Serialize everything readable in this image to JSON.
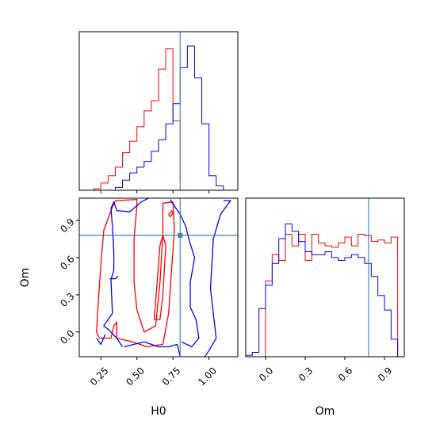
{
  "chart_data": {
    "type": "corner",
    "parameters": [
      "H0",
      "Om"
    ],
    "axis_labels": {
      "x_left": "H0",
      "x_right": "Om",
      "y_left": "Om"
    },
    "truth": {
      "H0": 0.8,
      "Om": 0.78
    },
    "colors": {
      "red": "#ff0000",
      "blue": "#0000ff",
      "truth": "#4682b4"
    },
    "H0": {
      "xlim": [
        0.1,
        1.2
      ],
      "ticks": [
        0.25,
        0.5,
        0.75,
        1.0
      ],
      "tick_labels": [
        "0.25",
        "0.50",
        "0.75",
        "1.00"
      ],
      "hist_red_edges": [
        0.2,
        0.25,
        0.3,
        0.35,
        0.4,
        0.45,
        0.5,
        0.55,
        0.6,
        0.65,
        0.7,
        0.75,
        0.8
      ],
      "hist_red_values": [
        0.01,
        0.05,
        0.1,
        0.16,
        0.26,
        0.34,
        0.44,
        0.55,
        0.62,
        0.84,
        0.98,
        0.48,
        0.06
      ],
      "hist_blue_edges": [
        0.35,
        0.4,
        0.45,
        0.5,
        0.55,
        0.6,
        0.65,
        0.7,
        0.75,
        0.8,
        0.85,
        0.9,
        0.95,
        1.0,
        1.05,
        1.1
      ],
      "hist_blue_values": [
        0.02,
        0.07,
        0.12,
        0.16,
        0.2,
        0.27,
        0.35,
        0.46,
        0.6,
        0.85,
        1.0,
        0.78,
        0.46,
        0.1,
        0.03
      ]
    },
    "Om": {
      "xlim": [
        -0.15,
        1.05
      ],
      "ylim": [
        -0.2,
        1.08
      ],
      "ticks": [
        0.0,
        0.3,
        0.6,
        0.9
      ],
      "tick_labels": [
        "0.0",
        "0.3",
        "0.6",
        "0.9"
      ],
      "hist_edges": [
        -0.15,
        -0.1,
        -0.05,
        0.0,
        0.05,
        0.1,
        0.15,
        0.2,
        0.25,
        0.3,
        0.35,
        0.4,
        0.45,
        0.5,
        0.55,
        0.6,
        0.65,
        0.7,
        0.75,
        0.8,
        0.85,
        0.9,
        0.95,
        1.0,
        1.05
      ],
      "hist_red_values": [
        0,
        0,
        0,
        0.52,
        0.7,
        0.66,
        0.84,
        0.76,
        0.84,
        0.66,
        0.84,
        0.78,
        0.76,
        0.75,
        0.78,
        0.82,
        0.76,
        0.84,
        0.83,
        0.79,
        0.8,
        0.78,
        0.82,
        0
      ],
      "hist_blue_values": [
        0.01,
        0.03,
        0.33,
        0.49,
        0.64,
        0.81,
        0.91,
        0.86,
        0.79,
        0.72,
        0.7,
        0.7,
        0.72,
        0.68,
        0.66,
        0.68,
        0.7,
        0.68,
        0.64,
        0.55,
        0.42,
        0.32,
        0.12,
        0
      ]
    },
    "contours_red": [
      [
        [
          0.47,
          -0.08
        ],
        [
          0.57,
          -0.12
        ],
        [
          0.68,
          -0.1
        ],
        [
          0.72,
          0.15
        ],
        [
          0.74,
          0.5
        ],
        [
          0.76,
          0.82
        ],
        [
          0.75,
          1.05
        ],
        [
          0.68,
          1.04
        ],
        [
          0.68,
          0.8
        ],
        [
          0.66,
          0.4
        ],
        [
          0.63,
          0.05
        ],
        [
          0.55,
          0.0
        ],
        [
          0.5,
          0.18
        ],
        [
          0.48,
          0.4
        ],
        [
          0.48,
          0.75
        ],
        [
          0.5,
          1.02
        ],
        [
          0.5,
          1.07
        ],
        [
          0.35,
          1.06
        ],
        [
          0.32,
          0.98
        ],
        [
          0.27,
          0.82
        ],
        [
          0.25,
          0.55
        ],
        [
          0.23,
          0.2
        ],
        [
          0.22,
          0.0
        ],
        [
          0.24,
          -0.05
        ],
        [
          0.32,
          -0.05
        ],
        [
          0.34,
          0.05
        ],
        [
          0.36,
          0.08
        ],
        [
          0.36,
          -0.05
        ],
        [
          0.47,
          -0.08
        ]
      ],
      [
        [
          0.62,
          0.1
        ],
        [
          0.64,
          0.4
        ],
        [
          0.66,
          0.7
        ],
        [
          0.68,
          0.78
        ],
        [
          0.7,
          0.7
        ],
        [
          0.68,
          0.3
        ],
        [
          0.66,
          0.1
        ],
        [
          0.62,
          0.1
        ]
      ],
      [
        [
          0.72,
          0.95
        ],
        [
          0.74,
          0.98
        ],
        [
          0.75,
          0.96
        ],
        [
          0.73,
          0.93
        ],
        [
          0.72,
          0.95
        ]
      ]
    ],
    "contours_blue": [
      [
        [
          0.41,
          -0.12
        ],
        [
          0.55,
          -0.08
        ],
        [
          0.65,
          -0.12
        ],
        [
          0.72,
          -0.12
        ],
        [
          0.78,
          -0.1
        ],
        [
          0.8,
          -0.2
        ]
      ],
      [
        [
          0.4,
          -0.12
        ],
        [
          0.36,
          -0.05
        ],
        [
          0.3,
          0.02
        ],
        [
          0.27,
          0.05
        ],
        [
          0.33,
          0.15
        ],
        [
          0.32,
          0.42
        ],
        [
          0.34,
          0.5
        ],
        [
          0.34,
          0.65
        ],
        [
          0.33,
          0.85
        ],
        [
          0.32,
          1.0
        ],
        [
          0.34,
          1.05
        ],
        [
          0.36,
          0.98
        ],
        [
          0.45,
          0.97
        ],
        [
          0.5,
          1.02
        ],
        [
          0.53,
          1.05
        ],
        [
          0.58,
          1.08
        ]
      ],
      [
        [
          0.81,
          -0.08
        ],
        [
          0.88,
          -0.12
        ],
        [
          0.93,
          -0.05
        ],
        [
          0.91,
          0.1
        ],
        [
          0.87,
          0.2
        ],
        [
          0.87,
          0.4
        ],
        [
          0.9,
          0.6
        ],
        [
          0.86,
          0.75
        ],
        [
          0.84,
          0.85
        ],
        [
          0.8,
          0.95
        ],
        [
          0.77,
          1.0
        ],
        [
          0.73,
          1.07
        ]
      ],
      [
        [
          1.1,
          1.06
        ],
        [
          1.15,
          1.06
        ],
        [
          1.08,
          0.95
        ],
        [
          1.03,
          0.75
        ],
        [
          1.01,
          0.35
        ],
        [
          1.05,
          -0.05
        ],
        [
          1.0,
          -0.15
        ],
        [
          0.97,
          -0.2
        ]
      ],
      [
        [
          0.31,
          0.43
        ],
        [
          0.35,
          0.43
        ],
        [
          0.37,
          0.45
        ]
      ],
      [
        [
          0.22,
          -0.05
        ],
        [
          0.25,
          -0.1
        ],
        [
          0.28,
          -0.02
        ]
      ]
    ]
  }
}
